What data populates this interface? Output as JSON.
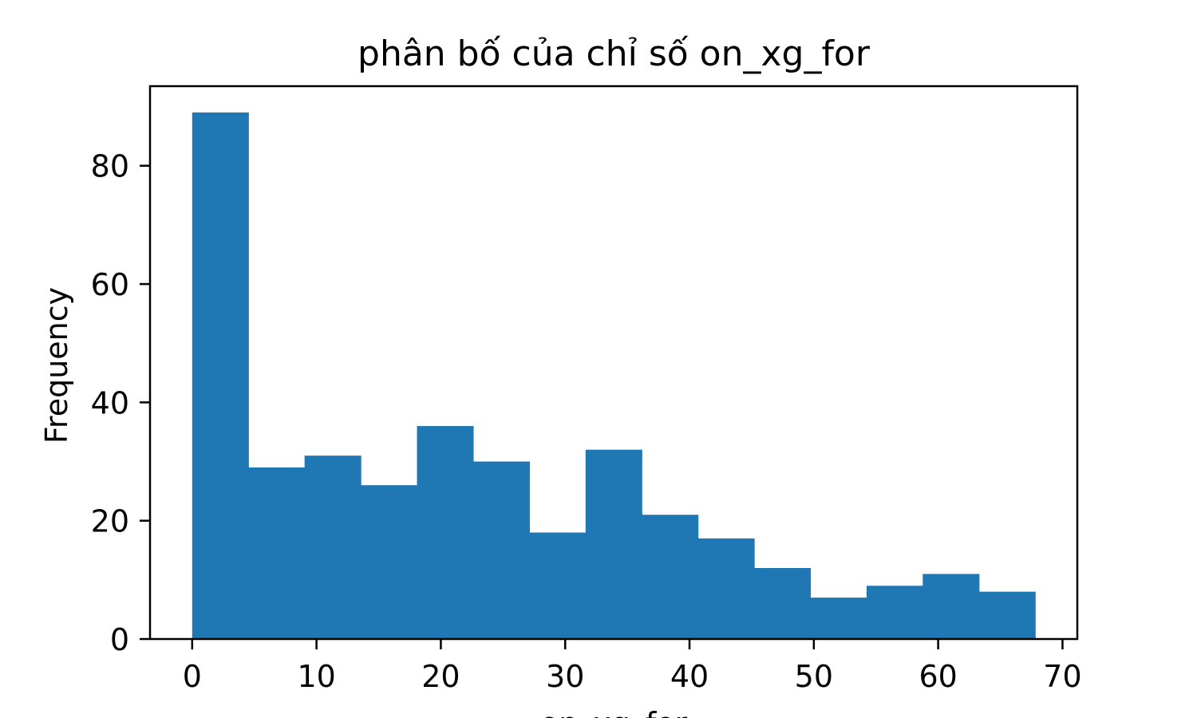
{
  "chart_data": {
    "type": "bar",
    "title": "phân bố của chỉ số on_xg_for",
    "xlabel": "on_xg_for",
    "ylabel": "Frequency",
    "bin_edges": [
      0,
      4.52,
      9.04,
      13.56,
      18.08,
      22.6,
      27.12,
      31.64,
      36.16,
      40.68,
      45.2,
      49.72,
      54.24,
      58.76,
      63.28,
      67.8
    ],
    "values": [
      89,
      29,
      31,
      26,
      36,
      30,
      18,
      32,
      21,
      17,
      12,
      7,
      9,
      11,
      8
    ],
    "xlim": [
      -3.39,
      71.19
    ],
    "ylim": [
      0,
      93.45
    ],
    "x_ticks": [
      0,
      10,
      20,
      30,
      40,
      50,
      60,
      70
    ],
    "y_ticks": [
      0,
      20,
      40,
      60,
      80
    ],
    "bar_color": "#1f77b4",
    "grid": false
  }
}
